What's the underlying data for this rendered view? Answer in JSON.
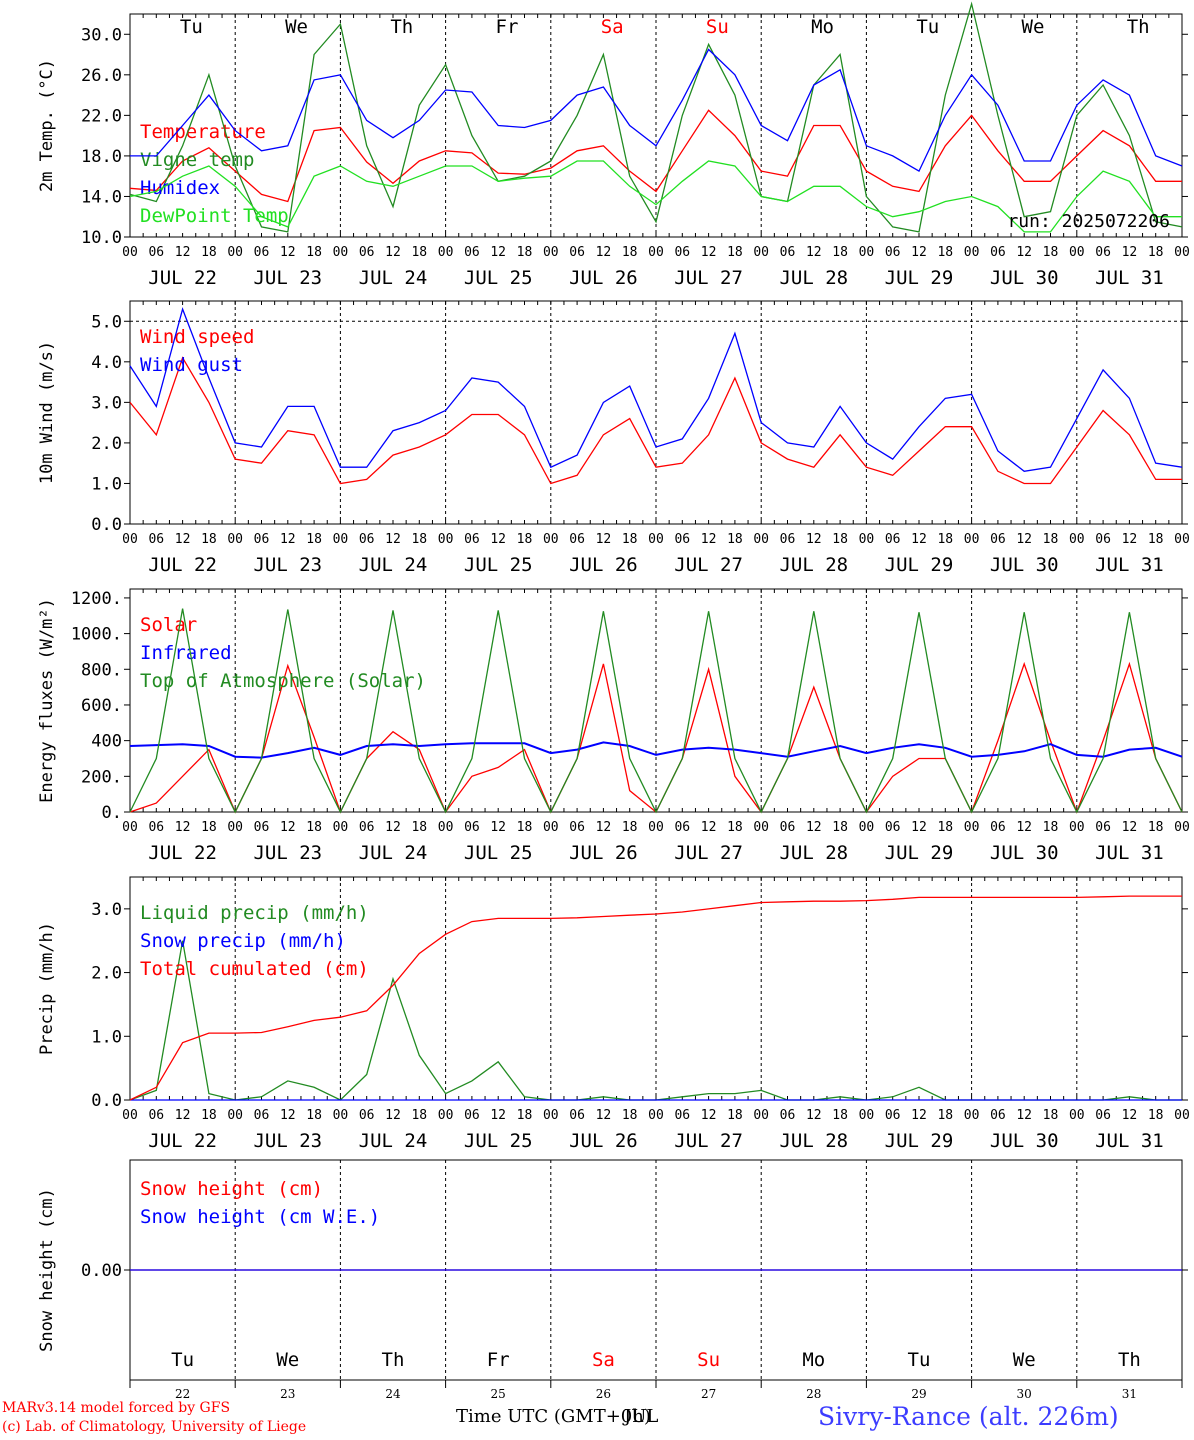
{
  "days": [
    "Tu",
    "We",
    "Th",
    "Fr",
    "Sa",
    "Su",
    "Mo",
    "Tu",
    "We",
    "Th"
  ],
  "weekend_flags": [
    false,
    false,
    false,
    false,
    true,
    true,
    false,
    false,
    false,
    false
  ],
  "date_labels": [
    "JUL 22",
    "JUL 23",
    "JUL 24",
    "JUL 25",
    "JUL 26",
    "JUL 27",
    "JUL 28",
    "JUL 29",
    "JUL 30",
    "JUL 31"
  ],
  "day_numbers": [
    "22",
    "23",
    "24",
    "25",
    "26",
    "27",
    "28",
    "29",
    "30",
    "31"
  ],
  "hour_ticks": [
    "00",
    "06",
    "12",
    "18"
  ],
  "hour_end": "00",
  "run_label": "run: 2025072206",
  "footer": {
    "model": "MARv3.14 model forced by GFS",
    "lab": "(c) Lab. of Climatology, University of Liege",
    "xlabel": "Time UTC (GMT+0h)",
    "xlabel_overlay": "JUL",
    "station": "Sivry-Rance (alt. 226m)"
  },
  "colors": {
    "temperature": "#ff0000",
    "vigne": "#228b22",
    "humidex": "#0000ff",
    "dewpoint": "#22e022",
    "weekend": "#ff0000",
    "station": "#3c3cff"
  },
  "chart_data": [
    {
      "type": "line",
      "ylabel": "2m Temp. (°C)",
      "ylim": [
        10,
        32
      ],
      "yticks": [
        "10.0",
        "14.0",
        "18.0",
        "22.0",
        "26.0",
        "30.0"
      ],
      "ytick_values": [
        10,
        14,
        18,
        22,
        26,
        30
      ],
      "x_hours": [
        0,
        6,
        12,
        18,
        24,
        30,
        36,
        42,
        48,
        54,
        60,
        66,
        72,
        78,
        84,
        90,
        96,
        102,
        108,
        114,
        120,
        126,
        132,
        138,
        144,
        150,
        156,
        162,
        168,
        174,
        180,
        186,
        192,
        198,
        204,
        210,
        216,
        222,
        228,
        234,
        240
      ],
      "series": [
        {
          "name": "Temperature",
          "color": "#ff0000",
          "values": [
            14.8,
            14.6,
            17.5,
            18.8,
            16.5,
            14.2,
            13.5,
            20.5,
            20.8,
            17.4,
            15.3,
            17.5,
            18.5,
            18.3,
            16.3,
            16.2,
            16.8,
            18.5,
            19.0,
            16.5,
            14.5,
            18.5,
            22.5,
            20.0,
            16.5,
            16.0,
            21.0,
            21.0,
            16.5,
            15.0,
            14.5,
            19.0,
            22.0,
            18.5,
            15.5,
            15.5,
            18.0,
            20.5,
            19.0,
            15.5,
            15.5
          ]
        },
        {
          "name": "Vigne temp",
          "color": "#228b22",
          "values": [
            14.2,
            13.5,
            19.0,
            26.0,
            17.0,
            11.0,
            10.5,
            28.0,
            31.0,
            19.0,
            13.0,
            23.0,
            27.0,
            20.0,
            15.5,
            16.0,
            17.5,
            22.0,
            28.0,
            16.0,
            11.5,
            22.0,
            29.0,
            24.0,
            14.0,
            13.5,
            25.0,
            28.0,
            14.0,
            11.0,
            10.5,
            24.0,
            33.0,
            22.0,
            12.0,
            12.5,
            22.0,
            25.0,
            20.0,
            11.5,
            11.0
          ]
        },
        {
          "name": "Humidex",
          "color": "#0000ff",
          "values": [
            18.0,
            18.0,
            21.0,
            24.0,
            20.5,
            18.5,
            19.0,
            25.5,
            26.0,
            21.5,
            19.8,
            21.5,
            24.5,
            24.3,
            21.0,
            20.8,
            21.5,
            24.0,
            24.8,
            21.0,
            19.0,
            23.5,
            28.5,
            26.0,
            21.0,
            19.5,
            25.0,
            26.5,
            19.0,
            18.0,
            16.5,
            22.0,
            26.0,
            23.0,
            17.5,
            17.5,
            23.0,
            25.5,
            24.0,
            18.0,
            17.0
          ]
        },
        {
          "name": "DewPoint Temp",
          "color": "#22e022",
          "values": [
            14.0,
            14.5,
            16.0,
            17.0,
            15.0,
            12.0,
            11.0,
            16.0,
            17.0,
            15.5,
            15.0,
            16.0,
            17.0,
            17.0,
            15.5,
            15.8,
            16.0,
            17.5,
            17.5,
            15.0,
            13.2,
            15.5,
            17.5,
            17.0,
            14.0,
            13.5,
            15.0,
            15.0,
            13.0,
            12.0,
            12.5,
            13.5,
            14.0,
            13.0,
            10.5,
            10.5,
            14.0,
            16.5,
            15.5,
            12.0,
            12.0
          ]
        }
      ]
    },
    {
      "type": "line",
      "ylabel": "10m Wind (m/s)",
      "ylim": [
        0,
        5.5
      ],
      "yticks": [
        "0.0",
        "1.0",
        "2.0",
        "3.0",
        "4.0",
        "5.0"
      ],
      "ytick_values": [
        0,
        1,
        2,
        3,
        4,
        5
      ],
      "x_hours": [
        0,
        6,
        12,
        18,
        24,
        30,
        36,
        42,
        48,
        54,
        60,
        66,
        72,
        78,
        84,
        90,
        96,
        102,
        108,
        114,
        120,
        126,
        132,
        138,
        144,
        150,
        156,
        162,
        168,
        174,
        180,
        186,
        192,
        198,
        204,
        210,
        216,
        222,
        228,
        234,
        240
      ],
      "series": [
        {
          "name": "Wind speed",
          "color": "#ff0000",
          "values": [
            3.0,
            2.2,
            4.1,
            3.0,
            1.6,
            1.5,
            2.3,
            2.2,
            1.0,
            1.1,
            1.7,
            1.9,
            2.2,
            2.7,
            2.7,
            2.2,
            1.0,
            1.2,
            2.2,
            2.6,
            1.4,
            1.5,
            2.2,
            3.6,
            2.0,
            1.6,
            1.4,
            2.2,
            1.4,
            1.2,
            1.8,
            2.4,
            2.4,
            1.3,
            1.0,
            1.0,
            1.9,
            2.8,
            2.2,
            1.1,
            1.1
          ]
        },
        {
          "name": "Wind gust",
          "color": "#0000ff",
          "values": [
            3.9,
            2.9,
            5.3,
            3.6,
            2.0,
            1.9,
            2.9,
            2.9,
            1.4,
            1.4,
            2.3,
            2.5,
            2.8,
            3.6,
            3.5,
            2.9,
            1.4,
            1.7,
            3.0,
            3.4,
            1.9,
            2.1,
            3.1,
            4.7,
            2.5,
            2.0,
            1.9,
            2.9,
            2.0,
            1.6,
            2.4,
            3.1,
            3.2,
            1.8,
            1.3,
            1.4,
            2.6,
            3.8,
            3.1,
            1.5,
            1.4
          ]
        }
      ]
    },
    {
      "type": "line",
      "ylabel": "Energy fluxes (W/m²)",
      "ylim": [
        0,
        1250
      ],
      "yticks": [
        "0.",
        "200.",
        "400",
        "600.",
        "800.",
        "1000.",
        "1200."
      ],
      "ytick_values": [
        0,
        200,
        400,
        600,
        800,
        1000,
        1200
      ],
      "x_hours": [
        0,
        6,
        12,
        18,
        24,
        30,
        36,
        42,
        48,
        54,
        60,
        66,
        72,
        78,
        84,
        90,
        96,
        102,
        108,
        114,
        120,
        126,
        132,
        138,
        144,
        150,
        156,
        162,
        168,
        174,
        180,
        186,
        192,
        198,
        204,
        210,
        216,
        222,
        228,
        234,
        240
      ],
      "series": [
        {
          "name": "Solar",
          "color": "#ff0000",
          "values": [
            0,
            50,
            200,
            350,
            0,
            300,
            820,
            420,
            0,
            300,
            450,
            350,
            0,
            200,
            250,
            350,
            0,
            300,
            830,
            120,
            0,
            300,
            800,
            200,
            0,
            300,
            700,
            300,
            0,
            200,
            300,
            300,
            0,
            400,
            830,
            400,
            0,
            400,
            830,
            300,
            0
          ]
        },
        {
          "name": "Infrared",
          "color": "#0000ff",
          "values": [
            370,
            375,
            380,
            370,
            310,
            305,
            330,
            360,
            320,
            370,
            380,
            370,
            380,
            385,
            385,
            385,
            330,
            350,
            390,
            370,
            320,
            350,
            360,
            350,
            330,
            310,
            340,
            370,
            330,
            360,
            380,
            360,
            310,
            320,
            340,
            380,
            320,
            310,
            350,
            360,
            310
          ]
        },
        {
          "name": "Top of Atmosphere (Solar)",
          "color": "#228b22",
          "values": [
            0,
            300,
            1140,
            300,
            0,
            300,
            1135,
            300,
            0,
            300,
            1130,
            300,
            0,
            300,
            1130,
            300,
            0,
            300,
            1125,
            300,
            0,
            300,
            1125,
            300,
            0,
            300,
            1125,
            300,
            0,
            300,
            1120,
            300,
            0,
            300,
            1120,
            300,
            0,
            300,
            1120,
            300,
            0
          ]
        }
      ]
    },
    {
      "type": "line",
      "ylabel": "Precip (mm/h)",
      "ylim": [
        0,
        3.5
      ],
      "yticks": [
        "0.0",
        "1.0",
        "2.0",
        "3.0"
      ],
      "ytick_values": [
        0,
        1,
        2,
        3
      ],
      "x_hours": [
        0,
        6,
        12,
        18,
        24,
        30,
        36,
        42,
        48,
        54,
        60,
        66,
        72,
        78,
        84,
        90,
        96,
        102,
        108,
        114,
        120,
        126,
        132,
        138,
        144,
        150,
        156,
        162,
        168,
        174,
        180,
        186,
        192,
        198,
        204,
        210,
        216,
        222,
        228,
        234,
        240
      ],
      "series": [
        {
          "name": "Liquid precip (mm/h)",
          "color": "#228b22",
          "values": [
            0,
            0.15,
            2.5,
            0.1,
            0,
            0.05,
            0.3,
            0.2,
            0,
            0.4,
            1.9,
            0.7,
            0.1,
            0.3,
            0.6,
            0.05,
            0,
            0,
            0.05,
            0,
            0,
            0.05,
            0.1,
            0.1,
            0.15,
            0,
            0,
            0.05,
            0,
            0.05,
            0.2,
            0,
            0,
            0,
            0,
            0,
            0,
            0,
            0.05,
            0,
            0
          ]
        },
        {
          "name": "Snow precip (mm/h)",
          "color": "#0000ff",
          "values": [
            0,
            0,
            0,
            0,
            0,
            0,
            0,
            0,
            0,
            0,
            0,
            0,
            0,
            0,
            0,
            0,
            0,
            0,
            0,
            0,
            0,
            0,
            0,
            0,
            0,
            0,
            0,
            0,
            0,
            0,
            0,
            0,
            0,
            0,
            0,
            0,
            0,
            0,
            0,
            0,
            0
          ]
        },
        {
          "name": "Total cumulated (cm)",
          "color": "#ff0000",
          "values": [
            0,
            0.2,
            0.9,
            1.05,
            1.05,
            1.06,
            1.15,
            1.25,
            1.3,
            1.4,
            1.8,
            2.3,
            2.6,
            2.8,
            2.85,
            2.85,
            2.85,
            2.86,
            2.88,
            2.9,
            2.92,
            2.95,
            3.0,
            3.05,
            3.1,
            3.11,
            3.12,
            3.12,
            3.13,
            3.15,
            3.18,
            3.18,
            3.18,
            3.18,
            3.18,
            3.18,
            3.18,
            3.19,
            3.2,
            3.2,
            3.2
          ]
        }
      ]
    },
    {
      "type": "line",
      "ylabel": "Snow height (cm)",
      "ylim": [
        -1,
        1
      ],
      "yticks": [
        "0.00"
      ],
      "ytick_values": [
        0
      ],
      "x_hours": [
        0,
        240
      ],
      "series": [
        {
          "name": "Snow height (cm)",
          "color": "#ff0000",
          "values": [
            0,
            0
          ]
        },
        {
          "name": "Snow height (cm W.E.)",
          "color": "#0000ff",
          "values": [
            0,
            0
          ]
        }
      ]
    }
  ]
}
